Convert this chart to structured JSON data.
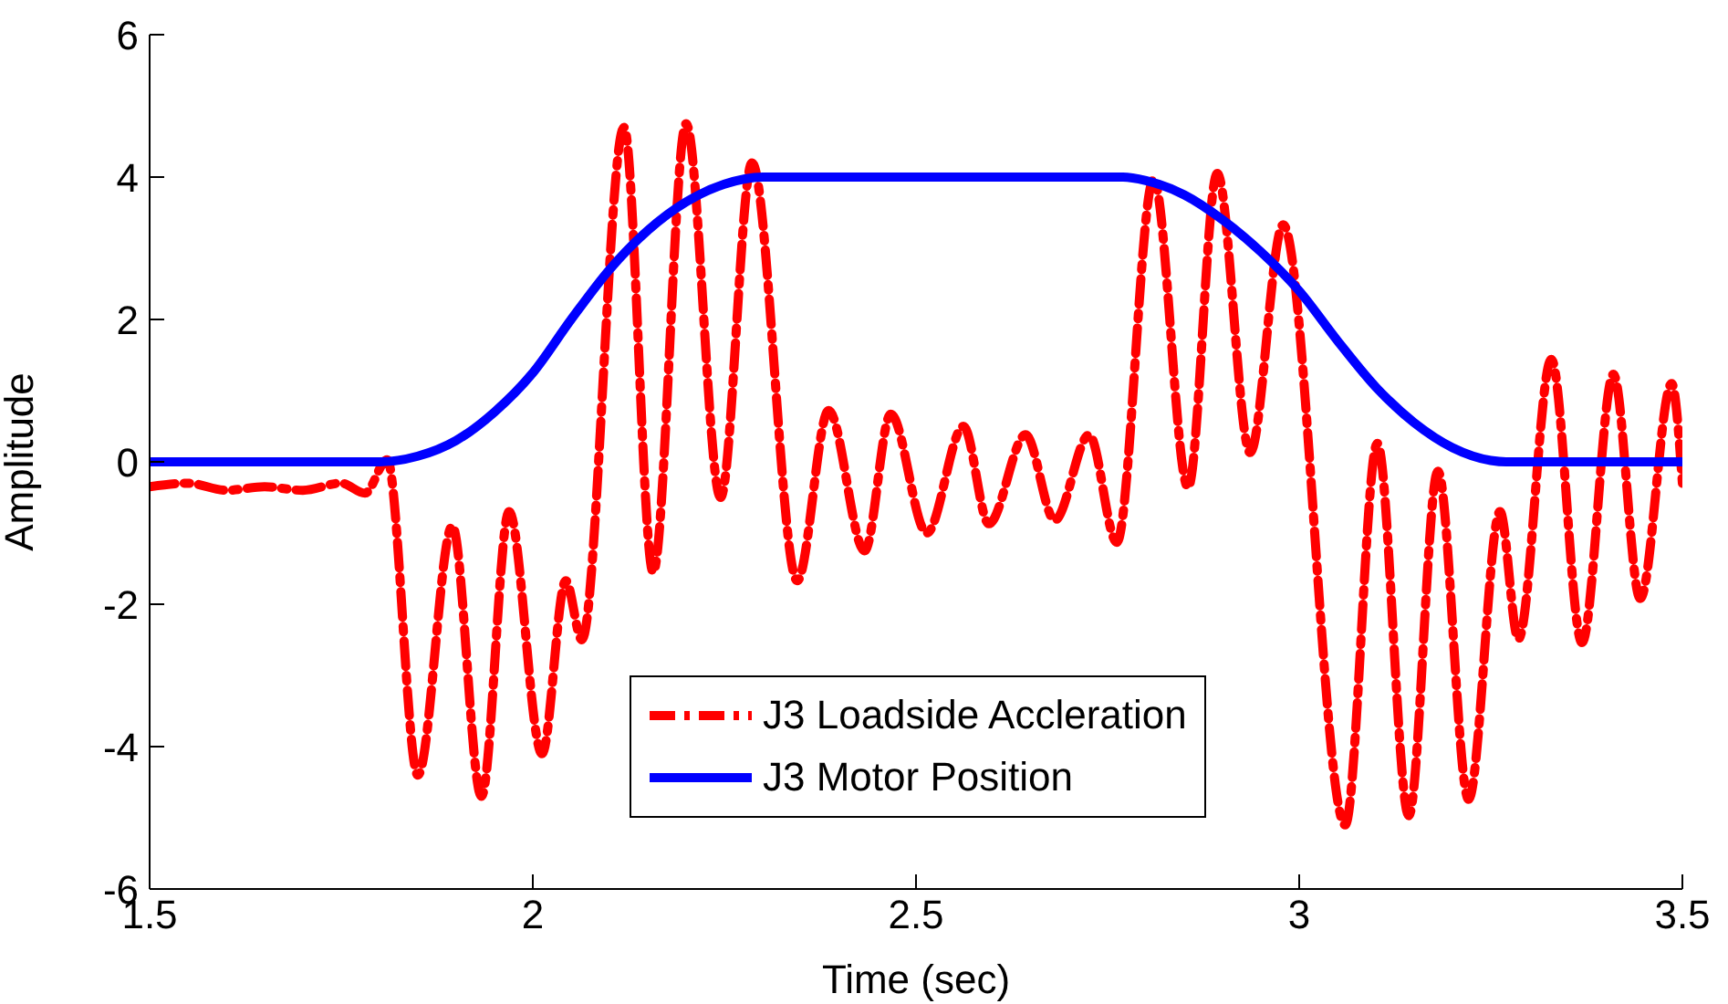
{
  "chart_data": {
    "type": "line",
    "xlabel": "Time (sec)",
    "ylabel": "Amplitude",
    "xlim": [
      1.5,
      3.5
    ],
    "ylim": [
      -6,
      6
    ],
    "xticks": [
      1.5,
      2,
      2.5,
      3,
      3.5
    ],
    "yticks": [
      -6,
      -4,
      -2,
      0,
      2,
      4,
      6
    ],
    "grid": false,
    "legend": "bottom",
    "marker": "none",
    "series": [
      {
        "name": "J3 Loadside Accleration",
        "color": "#ff0000",
        "line_style": "dashed",
        "x": [
          1.5,
          1.55,
          1.6,
          1.65,
          1.7,
          1.75,
          1.781,
          1.81,
          1.85,
          1.895,
          1.933,
          1.969,
          2.012,
          2.043,
          2.064,
          2.119,
          2.157,
          2.2,
          2.245,
          2.286,
          2.345,
          2.386,
          2.433,
          2.467,
          2.514,
          2.562,
          2.595,
          2.643,
          2.681,
          2.726,
          2.762,
          2.81,
          2.855,
          2.893,
          2.936,
          2.979,
          3.06,
          3.102,
          3.143,
          3.181,
          3.221,
          3.262,
          3.286,
          3.329,
          3.369,
          3.41,
          3.445,
          3.486,
          3.5
        ],
        "values": [
          -0.35,
          -0.3,
          -0.4,
          -0.35,
          -0.4,
          -0.3,
          -0.44,
          0.03,
          -4.4,
          -0.9,
          -4.7,
          -0.7,
          -4.1,
          -1.67,
          -2.5,
          4.7,
          -1.55,
          4.75,
          -0.5,
          4.2,
          -1.67,
          0.72,
          -1.25,
          0.67,
          -1.0,
          0.5,
          -0.87,
          0.38,
          -0.82,
          0.38,
          -1.13,
          3.97,
          -0.36,
          4.05,
          0.13,
          3.33,
          -5.1,
          0.26,
          -4.97,
          -0.13,
          -4.74,
          -0.7,
          -2.49,
          1.44,
          -2.54,
          1.23,
          -1.92,
          1.1,
          -0.3
        ]
      },
      {
        "name": "J3 Motor Position",
        "color": "#0000ff",
        "line_style": "solid",
        "x": [
          1.5,
          1.8,
          1.85,
          1.9,
          1.95,
          2.0,
          2.05,
          2.1,
          2.15,
          2.2,
          2.25,
          2.3,
          2.77,
          2.8,
          2.85,
          2.9,
          2.95,
          3.0,
          3.05,
          3.1,
          3.15,
          3.2,
          3.25,
          3.27,
          3.5
        ],
        "values": [
          0,
          0,
          0.08,
          0.3,
          0.7,
          1.25,
          2.0,
          2.7,
          3.25,
          3.65,
          3.9,
          4.0,
          4.0,
          3.95,
          3.75,
          3.4,
          2.95,
          2.4,
          1.7,
          1.05,
          0.55,
          0.2,
          0.02,
          0,
          0
        ]
      }
    ]
  }
}
